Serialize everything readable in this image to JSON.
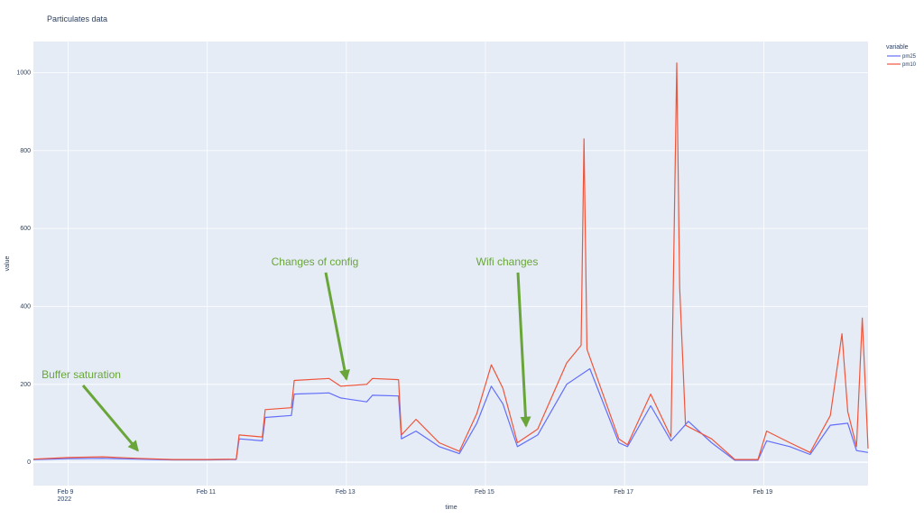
{
  "chart_data": {
    "type": "line",
    "title": "Particulates data",
    "xlabel": "time",
    "ylabel": "value",
    "legend_title": "variable",
    "legend_placement": "top-right",
    "grid": true,
    "x_unit": "days",
    "xlim": [
      "2022-02-08 12:00",
      "2022-02-20 12:00"
    ],
    "ylim": [
      -60,
      1080
    ],
    "x_ticks": [
      {
        "date": "2022-02-09",
        "label": "Feb 9",
        "sublabel": "2022"
      },
      {
        "date": "2022-02-11",
        "label": "Feb 11"
      },
      {
        "date": "2022-02-13",
        "label": "Feb 13"
      },
      {
        "date": "2022-02-15",
        "label": "Feb 15"
      },
      {
        "date": "2022-02-17",
        "label": "Feb 17"
      },
      {
        "date": "2022-02-19",
        "label": "Feb 19"
      }
    ],
    "y_ticks": [
      0,
      200,
      400,
      600,
      800,
      1000
    ],
    "series": [
      {
        "name": "pm25",
        "color": "#636efa",
        "points": [
          [
            "2022-02-08 12:00",
            7
          ],
          [
            "2022-02-09 00:00",
            9
          ],
          [
            "2022-02-09 12:00",
            10
          ],
          [
            "2022-02-10 00:00",
            8
          ],
          [
            "2022-02-10 12:00",
            6
          ],
          [
            "2022-02-11 00:00",
            6
          ],
          [
            "2022-02-11 10:00",
            7
          ],
          [
            "2022-02-11 11:00",
            60
          ],
          [
            "2022-02-11 19:00",
            55
          ],
          [
            "2022-02-11 20:00",
            115
          ],
          [
            "2022-02-12 05:00",
            120
          ],
          [
            "2022-02-12 06:00",
            175
          ],
          [
            "2022-02-12 18:00",
            178
          ],
          [
            "2022-02-12 22:00",
            165
          ],
          [
            "2022-02-13 07:00",
            155
          ],
          [
            "2022-02-13 09:00",
            172
          ],
          [
            "2022-02-13 18:00",
            170
          ],
          [
            "2022-02-13 19:00",
            60
          ],
          [
            "2022-02-14 00:00",
            80
          ],
          [
            "2022-02-14 08:00",
            40
          ],
          [
            "2022-02-14 15:00",
            22
          ],
          [
            "2022-02-14 21:00",
            100
          ],
          [
            "2022-02-15 02:00",
            195
          ],
          [
            "2022-02-15 06:00",
            150
          ],
          [
            "2022-02-15 11:00",
            40
          ],
          [
            "2022-02-15 18:00",
            70
          ],
          [
            "2022-02-16 04:00",
            200
          ],
          [
            "2022-02-16 12:00",
            240
          ],
          [
            "2022-02-16 22:00",
            50
          ],
          [
            "2022-02-17 01:00",
            40
          ],
          [
            "2022-02-17 09:00",
            145
          ],
          [
            "2022-02-17 16:00",
            55
          ],
          [
            "2022-02-17 22:00",
            105
          ],
          [
            "2022-02-18 06:00",
            50
          ],
          [
            "2022-02-18 14:00",
            5
          ],
          [
            "2022-02-18 22:00",
            5
          ],
          [
            "2022-02-19 01:00",
            55
          ],
          [
            "2022-02-19 09:00",
            40
          ],
          [
            "2022-02-19 16:00",
            20
          ],
          [
            "2022-02-19 23:00",
            95
          ],
          [
            "2022-02-20 05:00",
            100
          ],
          [
            "2022-02-20 08:00",
            30
          ],
          [
            "2022-02-20 12:00",
            25
          ]
        ]
      },
      {
        "name": "pm10",
        "color": "#ef553b",
        "points": [
          [
            "2022-02-08 12:00",
            8
          ],
          [
            "2022-02-09 00:00",
            12
          ],
          [
            "2022-02-09 12:00",
            14
          ],
          [
            "2022-02-10 00:00",
            10
          ],
          [
            "2022-02-10 12:00",
            7
          ],
          [
            "2022-02-11 00:00",
            7
          ],
          [
            "2022-02-11 10:00",
            8
          ],
          [
            "2022-02-11 11:00",
            70
          ],
          [
            "2022-02-11 19:00",
            65
          ],
          [
            "2022-02-11 20:00",
            135
          ],
          [
            "2022-02-12 05:00",
            140
          ],
          [
            "2022-02-12 06:00",
            210
          ],
          [
            "2022-02-12 18:00",
            215
          ],
          [
            "2022-02-12 22:00",
            195
          ],
          [
            "2022-02-13 07:00",
            200
          ],
          [
            "2022-02-13 09:00",
            215
          ],
          [
            "2022-02-13 18:00",
            212
          ],
          [
            "2022-02-13 19:00",
            70
          ],
          [
            "2022-02-14 00:00",
            110
          ],
          [
            "2022-02-14 08:00",
            50
          ],
          [
            "2022-02-14 15:00",
            28
          ],
          [
            "2022-02-14 21:00",
            125
          ],
          [
            "2022-02-15 02:00",
            250
          ],
          [
            "2022-02-15 06:00",
            190
          ],
          [
            "2022-02-15 11:00",
            50
          ],
          [
            "2022-02-15 18:00",
            85
          ],
          [
            "2022-02-16 04:00",
            255
          ],
          [
            "2022-02-16 09:00",
            300
          ],
          [
            "2022-02-16 10:00",
            830
          ],
          [
            "2022-02-16 11:00",
            290
          ],
          [
            "2022-02-16 22:00",
            60
          ],
          [
            "2022-02-17 01:00",
            45
          ],
          [
            "2022-02-17 09:00",
            175
          ],
          [
            "2022-02-17 16:00",
            65
          ],
          [
            "2022-02-17 18:00",
            1025
          ],
          [
            "2022-02-17 19:00",
            450
          ],
          [
            "2022-02-17 21:00",
            95
          ],
          [
            "2022-02-18 06:00",
            60
          ],
          [
            "2022-02-18 14:00",
            7
          ],
          [
            "2022-02-18 22:00",
            7
          ],
          [
            "2022-02-19 01:00",
            80
          ],
          [
            "2022-02-19 09:00",
            50
          ],
          [
            "2022-02-19 16:00",
            25
          ],
          [
            "2022-02-19 23:00",
            120
          ],
          [
            "2022-02-20 03:00",
            330
          ],
          [
            "2022-02-20 05:00",
            130
          ],
          [
            "2022-02-20 08:00",
            40
          ],
          [
            "2022-02-20 10:00",
            370
          ],
          [
            "2022-02-20 12:00",
            35
          ]
        ]
      }
    ],
    "annotations": [
      {
        "text": "Buffer saturation",
        "arrow_to": [
          "2022-02-10 00:00",
          12
        ]
      },
      {
        "text": "Changes of config",
        "arrow_to": [
          "2022-02-13 00:00",
          195
        ]
      },
      {
        "text": "Wifi changes",
        "arrow_to": [
          "2022-02-15 14:00",
          75
        ]
      }
    ]
  },
  "colors": {
    "plot_bg": "#e5ecf6",
    "grid": "#ffffff",
    "text": "#2a3f5f",
    "annotation": "#6aa53a"
  }
}
